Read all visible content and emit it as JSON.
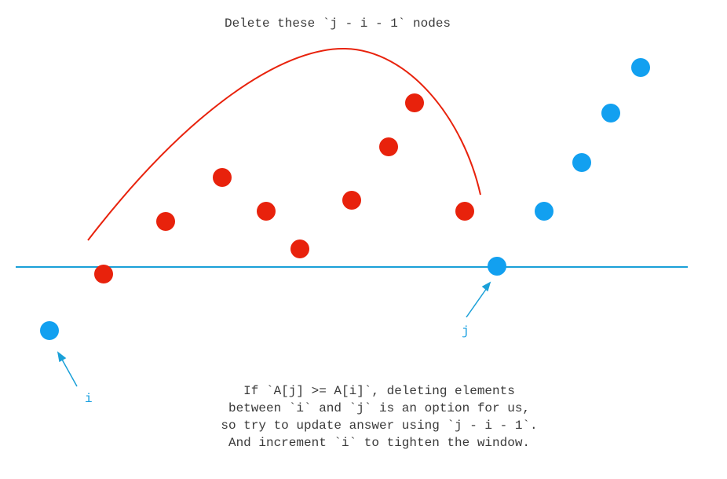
{
  "header": {
    "note": "Delete these `j - i - 1` nodes"
  },
  "pointers": {
    "i": "i",
    "j": "j"
  },
  "footer": {
    "lines": [
      "If `A[j] >= A[i]`, deleting elements",
      "between `i` and `j` is an option for us,",
      "so try to update answer using `j - i - 1`.",
      "And increment `i` to tighten the window."
    ]
  },
  "colors": {
    "deleted_node": "#e8220c",
    "kept_node": "#12a0f0",
    "threshold_line": "#1aa0d8",
    "arc": "#e8220c",
    "text": "#3a3a3a"
  }
}
